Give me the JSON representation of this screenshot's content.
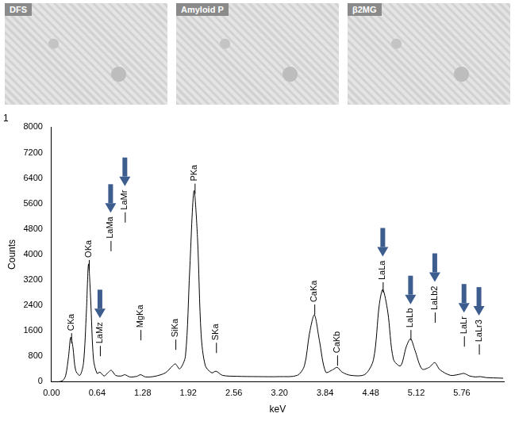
{
  "panels": [
    {
      "label": "DFS"
    },
    {
      "label": "Amyloid P"
    },
    {
      "label": "β2MG"
    }
  ],
  "chart_data": {
    "type": "line",
    "title": "1",
    "x_label": "keV",
    "y_label": "Counts",
    "color": "#000000",
    "grid": false,
    "xlim": [
      0,
      6.35
    ],
    "ylim": [
      0,
      8000
    ],
    "xticks": [
      {
        "value": 0,
        "label": "0.00"
      },
      0.64,
      1.28,
      1.92,
      2.56,
      {
        "value": 3.2,
        "label": "3.20"
      },
      3.84,
      4.48,
      5.12,
      5.76
    ],
    "yticks": [
      0,
      800,
      1600,
      2400,
      3200,
      4000,
      4800,
      5600,
      6400,
      7200,
      8000
    ],
    "x": [
      0.0,
      0.1,
      0.16,
      0.2,
      0.24,
      0.27,
      0.3,
      0.34,
      0.4,
      0.45,
      0.49,
      0.52,
      0.55,
      0.59,
      0.64,
      0.68,
      0.74,
      0.8,
      0.84,
      0.9,
      0.98,
      1.03,
      1.1,
      1.2,
      1.25,
      1.32,
      1.45,
      1.6,
      1.7,
      1.74,
      1.8,
      1.88,
      1.94,
      2.0,
      2.05,
      2.1,
      2.16,
      2.25,
      2.31,
      2.4,
      2.6,
      2.9,
      3.2,
      3.45,
      3.55,
      3.62,
      3.69,
      3.76,
      3.85,
      3.95,
      4.01,
      4.08,
      4.2,
      4.4,
      4.52,
      4.6,
      4.65,
      4.72,
      4.8,
      4.9,
      4.98,
      5.04,
      5.1,
      5.2,
      5.3,
      5.38,
      5.45,
      5.6,
      5.72,
      5.79,
      5.87,
      5.95,
      6.02,
      6.1,
      6.2,
      6.34
    ],
    "values": [
      0,
      0,
      40,
      200,
      800,
      1400,
      1100,
      350,
      200,
      600,
      2200,
      3700,
      2600,
      700,
      260,
      300,
      180,
      300,
      360,
      200,
      180,
      220,
      150,
      170,
      220,
      150,
      170,
      280,
      500,
      560,
      400,
      800,
      3500,
      6000,
      4500,
      1500,
      500,
      280,
      330,
      200,
      170,
      160,
      160,
      200,
      500,
      1500,
      2100,
      1300,
      300,
      380,
      450,
      300,
      200,
      230,
      700,
      2400,
      2900,
      2200,
      700,
      500,
      1100,
      1350,
      1000,
      400,
      450,
      600,
      380,
      200,
      230,
      260,
      180,
      150,
      160,
      130,
      120,
      110
    ],
    "annotations": [
      {
        "text": "CKa",
        "x": 0.277,
        "y": 1600
      },
      {
        "text": "OKa",
        "x": 0.525,
        "y": 3900
      },
      {
        "text": "LaMz",
        "x": 0.68,
        "y": 1200,
        "marker": "arrow"
      },
      {
        "text": "LaMa",
        "x": 0.83,
        "y": 4500,
        "marker": "arrow"
      },
      {
        "text": "LaMr",
        "x": 1.03,
        "y": 5400,
        "marker": "arrow"
      },
      {
        "text": "MgKa",
        "x": 1.25,
        "y": 1700
      },
      {
        "text": "SiKa",
        "x": 1.74,
        "y": 1400
      },
      {
        "text": "PKa",
        "x": 2.01,
        "y": 6300
      },
      {
        "text": "SKa",
        "x": 2.31,
        "y": 1300
      },
      {
        "text": "CaKa",
        "x": 3.69,
        "y": 2500
      },
      {
        "text": "CaKb",
        "x": 4.01,
        "y": 900
      },
      {
        "text": "LaLa",
        "x": 4.65,
        "y": 3200,
        "marker": "arrow"
      },
      {
        "text": "LaLb",
        "x": 5.04,
        "y": 1700,
        "marker": "arrow"
      },
      {
        "text": "LaLb2",
        "x": 5.38,
        "y": 2250,
        "marker": "arrow"
      },
      {
        "text": "LaLr",
        "x": 5.79,
        "y": 1500,
        "marker": "arrow"
      },
      {
        "text": "LaLr3",
        "x": 6.0,
        "y": 1250,
        "marker": "arrow"
      }
    ]
  }
}
